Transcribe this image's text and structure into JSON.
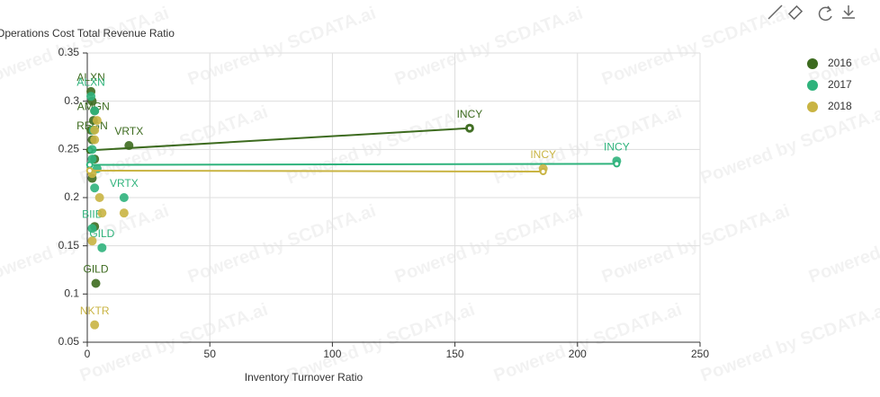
{
  "chart_data": {
    "type": "scatter",
    "xlabel": "Inventory Turnover Ratio",
    "ylabel": "Operations Cost Total Revenue Ratio",
    "watermark": "Powered by SCDATA.ai",
    "xlim": [
      0,
      250
    ],
    "xticks": [
      0,
      50,
      100,
      150,
      200,
      250
    ],
    "ylim": [
      0.05,
      0.35
    ],
    "yticks": [
      0.05,
      0.1,
      0.15,
      0.2,
      0.25,
      0.3,
      0.35
    ],
    "grid": true,
    "legend": "top-right",
    "series": [
      {
        "name": "2016",
        "color": "#3d6b1f",
        "x": [
          156,
          17,
          3.5,
          1.5,
          2,
          3,
          2.5,
          1.5,
          2,
          3,
          2,
          3
        ],
        "values": [
          0.272,
          0.254,
          0.111,
          0.31,
          0.3,
          0.29,
          0.28,
          0.27,
          0.26,
          0.24,
          0.22,
          0.17
        ],
        "labels": [
          "INCY",
          "VRTX",
          "GILD",
          "ALXN",
          null,
          null,
          "AMGN",
          null,
          "REGN",
          null,
          null,
          null
        ],
        "trend_x": [
          1,
          156
        ],
        "trend_y": [
          0.249,
          0.272
        ]
      },
      {
        "name": "2017",
        "color": "#2fb37c",
        "x": [
          216,
          15,
          6,
          1.5,
          2,
          3,
          2.5,
          2,
          4,
          3,
          2
        ],
        "values": [
          0.238,
          0.2,
          0.148,
          0.305,
          0.168,
          0.29,
          0.27,
          0.25,
          0.23,
          0.21,
          0.24
        ],
        "labels": [
          "INCY",
          "VRTX",
          "GILD",
          "ALXN",
          "BIIB",
          null,
          null,
          null,
          null,
          null,
          null
        ],
        "trend_x": [
          1,
          216
        ],
        "trend_y": [
          0.234,
          0.235
        ]
      },
      {
        "name": "2018",
        "color": "#c9b443",
        "x": [
          186,
          3,
          15,
          6,
          2,
          3,
          4,
          5,
          2,
          3
        ],
        "values": [
          0.23,
          0.068,
          0.184,
          0.184,
          0.155,
          0.27,
          0.28,
          0.2,
          0.225,
          0.26
        ],
        "labels": [
          "INCY",
          "NKTR",
          null,
          null,
          null,
          null,
          null,
          null,
          null,
          null
        ],
        "trend_x": [
          1,
          186
        ],
        "trend_y": [
          0.228,
          0.227
        ]
      }
    ]
  }
}
